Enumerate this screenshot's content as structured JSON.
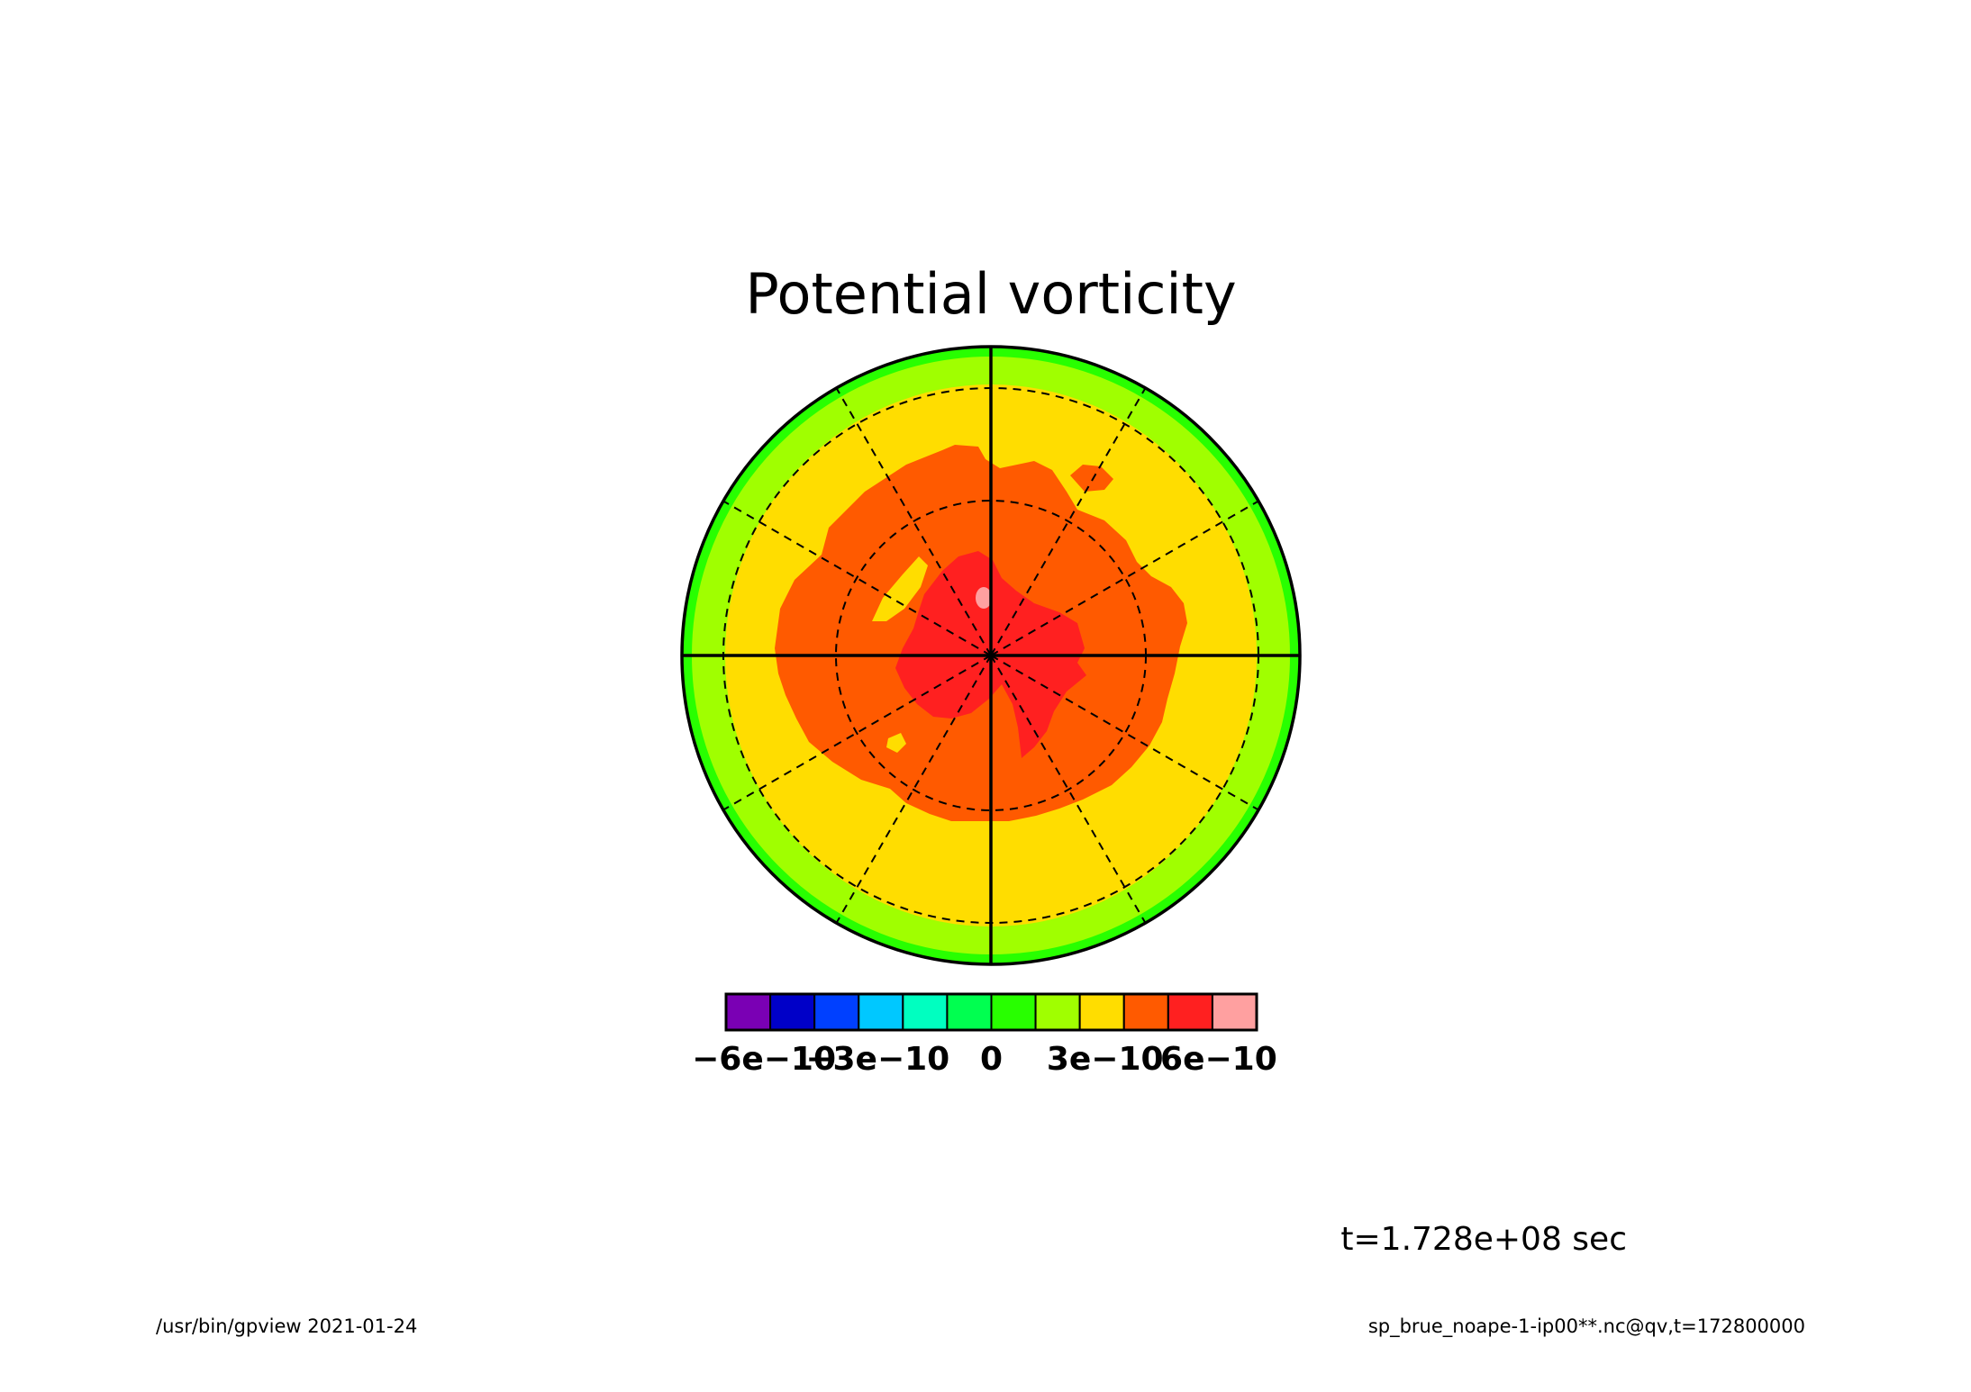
{
  "chart_data": {
    "type": "heatmap",
    "title": "Potential vorticity",
    "projection": "polar-stereographic",
    "colorbar": {
      "levels": [
        -7e-10,
        -6e-10,
        -5e-10,
        -4e-10,
        -3e-10,
        -2e-10,
        -1e-10,
        0,
        1e-10,
        2e-10,
        3e-10,
        4e-10,
        5e-10,
        6e-10,
        7e-10
      ],
      "colors": [
        "#7a00b4",
        "#0000c8",
        "#0040ff",
        "#00c8ff",
        "#00ffc0",
        "#00ff50",
        "#28ff00",
        "#a0ff00",
        "#ffdd00",
        "#ff5a00",
        "#ff2020",
        "#ffa0a0"
      ],
      "ticks": [
        {
          "value": -6e-10,
          "label": "−6e−10"
        },
        {
          "value": -3e-10,
          "label": "−3e−10"
        },
        {
          "value": 0,
          "label": "0"
        },
        {
          "value": 3e-10,
          "label": "3e−10"
        },
        {
          "value": 6e-10,
          "label": "6e−10"
        }
      ]
    },
    "annotation": "t=1.728e+08 sec",
    "grid": true,
    "legend": "bottom"
  },
  "footer": {
    "left": "/usr/bin/gpview  2021-01-24",
    "right": "sp_brue_noape-1-ip00**.nc@qv,t=172800000"
  }
}
